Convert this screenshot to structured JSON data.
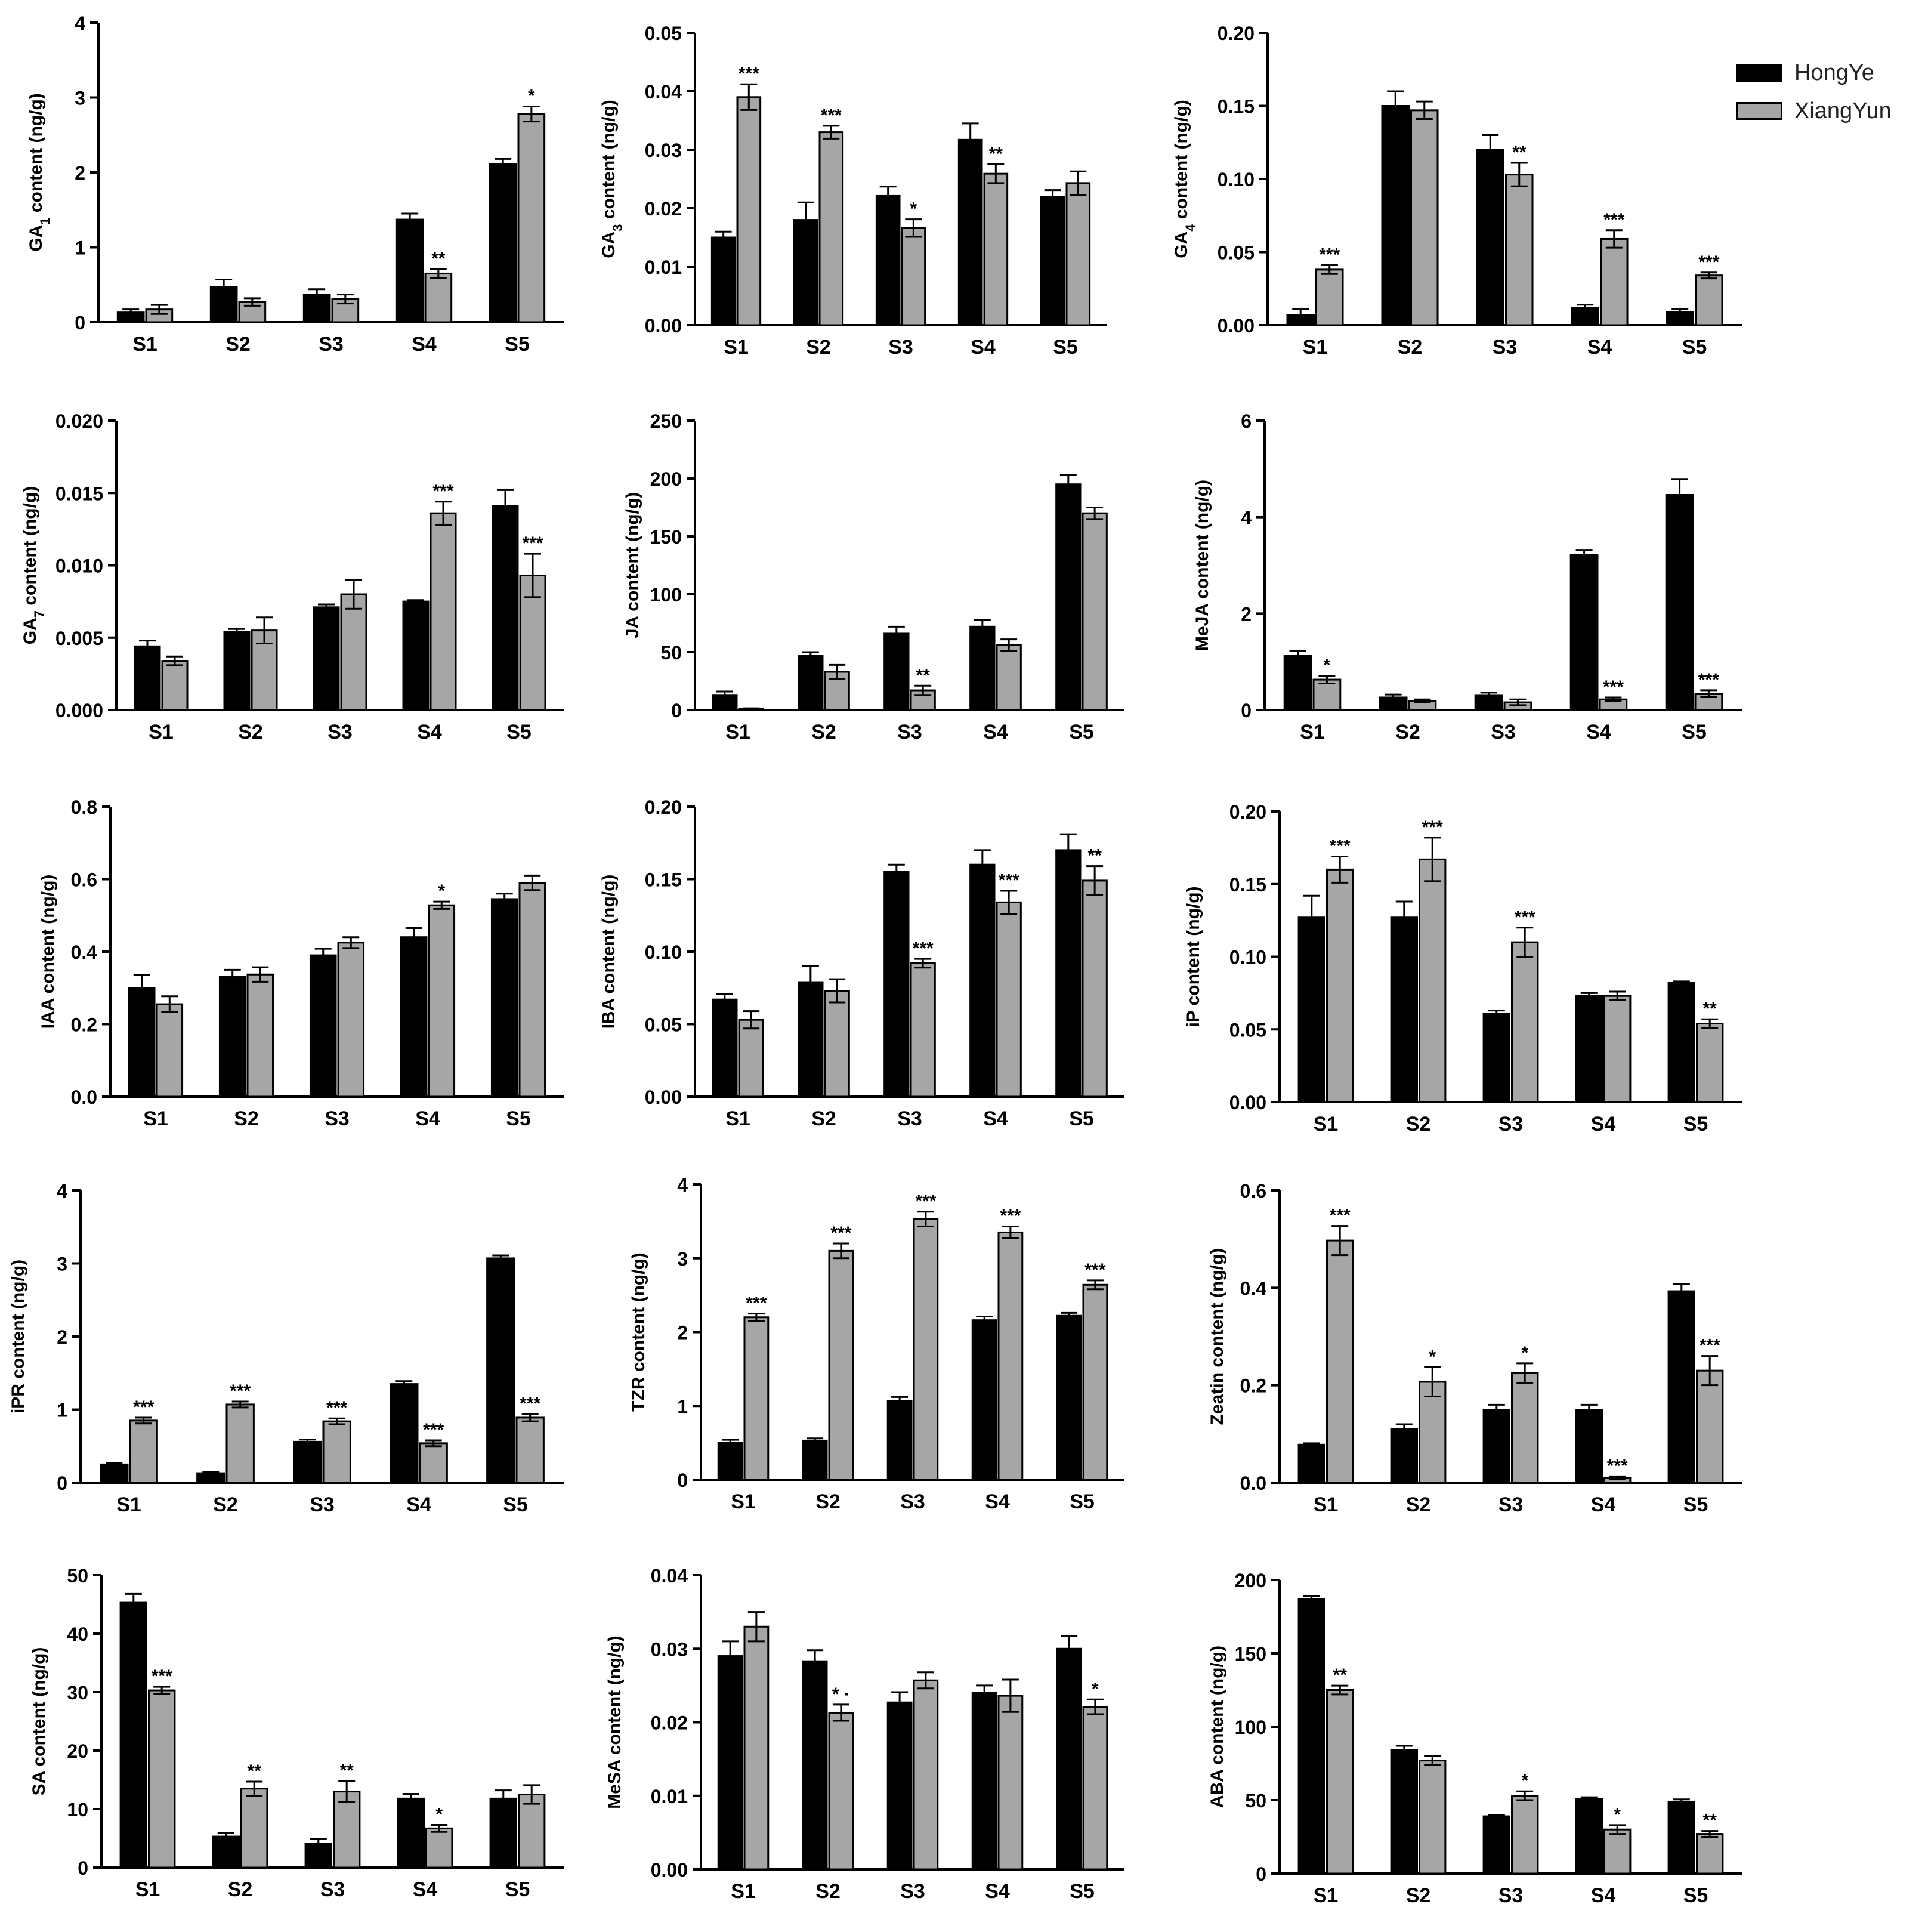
{
  "legend": {
    "items": [
      {
        "label": "HongYe",
        "color": "#000000"
      },
      {
        "label": "XiangYun",
        "color": "#a6a6a6"
      }
    ]
  },
  "chart_data": [
    {
      "type": "bar",
      "ylabel": "GA1 content (ng/g)",
      "ylabel_main": "GA",
      "ylabel_sub": "1",
      "ylabel_rest": " content (ng/g)",
      "categories": [
        "S1",
        "S2",
        "S3",
        "S4",
        "S5"
      ],
      "ylim": [
        0,
        4
      ],
      "yticks": [
        "0",
        "1",
        "2",
        "3",
        "4"
      ],
      "series": [
        {
          "name": "HongYe",
          "values": [
            0.13,
            0.47,
            0.37,
            1.37,
            2.11
          ],
          "errors": [
            0.04,
            0.1,
            0.07,
            0.08,
            0.07
          ]
        },
        {
          "name": "XiangYun",
          "values": [
            0.17,
            0.27,
            0.31,
            0.65,
            2.78
          ],
          "errors": [
            0.06,
            0.05,
            0.06,
            0.06,
            0.1
          ]
        }
      ],
      "annotations": [
        "",
        "",
        "",
        "**",
        "*"
      ]
    },
    {
      "type": "bar",
      "ylabel": "GA3 content (ng/g)",
      "ylabel_main": "GA",
      "ylabel_sub": "3",
      "ylabel_rest": " content (ng/g)",
      "categories": [
        "S1",
        "S2",
        "S3",
        "S4",
        "S5"
      ],
      "ylim": [
        0,
        0.05
      ],
      "yticks": [
        "0.00",
        "0.01",
        "0.02",
        "0.03",
        "0.04",
        "0.05"
      ],
      "series": [
        {
          "name": "HongYe",
          "values": [
            0.015,
            0.018,
            0.0222,
            0.0317,
            0.0219
          ],
          "errors": [
            0.001,
            0.003,
            0.0015,
            0.0028,
            0.0012
          ]
        },
        {
          "name": "XiangYun",
          "values": [
            0.039,
            0.033,
            0.0166,
            0.0259,
            0.0243
          ],
          "errors": [
            0.0022,
            0.0011,
            0.0015,
            0.0016,
            0.002
          ]
        }
      ],
      "annotations": [
        "***",
        "***",
        "*",
        "**",
        ""
      ]
    },
    {
      "type": "bar",
      "ylabel": "GA4 content (ng/g)",
      "ylabel_main": "GA",
      "ylabel_sub": "4",
      "ylabel_rest": " content (ng/g)",
      "categories": [
        "S1",
        "S2",
        "S3",
        "S4",
        "S5"
      ],
      "ylim": [
        0,
        0.2
      ],
      "yticks": [
        "0.00",
        "0.05",
        "0.10",
        "0.15",
        "0.20"
      ],
      "series": [
        {
          "name": "HongYe",
          "values": [
            0.007,
            0.15,
            0.12,
            0.012,
            0.009
          ],
          "errors": [
            0.004,
            0.01,
            0.01,
            0.002,
            0.002
          ]
        },
        {
          "name": "XiangYun",
          "values": [
            0.038,
            0.147,
            0.103,
            0.059,
            0.034
          ],
          "errors": [
            0.003,
            0.006,
            0.008,
            0.006,
            0.002
          ]
        }
      ],
      "annotations": [
        "***",
        "",
        "**",
        "***",
        "***"
      ]
    },
    {
      "type": "bar",
      "ylabel": "GA7 content (ng/g)",
      "ylabel_main": "GA",
      "ylabel_sub": "7",
      "ylabel_rest": " content (ng/g)",
      "categories": [
        "S1",
        "S2",
        "S3",
        "S4",
        "S5"
      ],
      "ylim": [
        0,
        0.02
      ],
      "yticks": [
        "0.000",
        "0.005",
        "0.010",
        "0.015",
        "0.020"
      ],
      "series": [
        {
          "name": "HongYe",
          "values": [
            0.0044,
            0.0054,
            0.0071,
            0.0075,
            0.0141
          ],
          "errors": [
            0.0004,
            0.0002,
            0.0002,
            0.0001,
            0.0011
          ]
        },
        {
          "name": "XiangYun",
          "values": [
            0.0034,
            0.0055,
            0.008,
            0.0136,
            0.0093
          ],
          "errors": [
            0.0003,
            0.0009,
            0.001,
            0.0008,
            0.0015
          ]
        }
      ],
      "annotations": [
        "",
        "",
        "",
        "***",
        "***"
      ]
    },
    {
      "type": "bar",
      "ylabel": "JA content (ng/g)",
      "ylabel_main": "JA content (ng/g)",
      "ylabel_sub": "",
      "ylabel_rest": "",
      "categories": [
        "S1",
        "S2",
        "S3",
        "S4",
        "S5"
      ],
      "ylim": [
        0,
        250
      ],
      "yticks": [
        "0",
        "50",
        "100",
        "150",
        "200",
        "250"
      ],
      "series": [
        {
          "name": "HongYe",
          "values": [
            13,
            47,
            66,
            72,
            195
          ],
          "errors": [
            3,
            3,
            6,
            6,
            8
          ]
        },
        {
          "name": "XiangYun",
          "values": [
            1,
            33,
            17,
            56,
            170
          ],
          "errors": [
            0.5,
            6,
            4,
            5,
            5
          ]
        }
      ],
      "annotations": [
        "",
        "",
        "**",
        "",
        ""
      ]
    },
    {
      "type": "bar",
      "ylabel": "MeJA content (ng/g)",
      "ylabel_main": "MeJA content (ng/g)",
      "ylabel_sub": "",
      "ylabel_rest": "",
      "categories": [
        "S1",
        "S2",
        "S3",
        "S4",
        "S5"
      ],
      "ylim": [
        0,
        6
      ],
      "yticks": [
        "0",
        "2",
        "4",
        "6"
      ],
      "series": [
        {
          "name": "HongYe",
          "values": [
            1.12,
            0.26,
            0.31,
            3.22,
            4.46
          ],
          "errors": [
            0.1,
            0.06,
            0.05,
            0.1,
            0.33
          ]
        },
        {
          "name": "XiangYun",
          "values": [
            0.63,
            0.19,
            0.16,
            0.22,
            0.34
          ],
          "errors": [
            0.08,
            0.03,
            0.06,
            0.04,
            0.07
          ]
        }
      ],
      "annotations": [
        "*",
        "",
        "",
        "***",
        "***"
      ]
    },
    {
      "type": "bar",
      "ylabel": "IAA content (ng/g)",
      "ylabel_main": "IAA content (ng/g)",
      "ylabel_sub": "",
      "ylabel_rest": "",
      "categories": [
        "S1",
        "S2",
        "S3",
        "S4",
        "S5"
      ],
      "ylim": [
        0,
        0.8
      ],
      "yticks": [
        "0.0",
        "0.2",
        "0.4",
        "0.6",
        "0.8"
      ],
      "series": [
        {
          "name": "HongYe",
          "values": [
            0.3,
            0.33,
            0.39,
            0.44,
            0.545
          ],
          "errors": [
            0.035,
            0.02,
            0.018,
            0.025,
            0.015
          ]
        },
        {
          "name": "XiangYun",
          "values": [
            0.255,
            0.337,
            0.425,
            0.528,
            0.59
          ],
          "errors": [
            0.022,
            0.02,
            0.015,
            0.01,
            0.02
          ]
        }
      ],
      "annotations": [
        "",
        "",
        "",
        "*",
        ""
      ]
    },
    {
      "type": "bar",
      "ylabel": "IBA content (ng/g)",
      "ylabel_main": "IBA content (ng/g)",
      "ylabel_sub": "",
      "ylabel_rest": "",
      "categories": [
        "S1",
        "S2",
        "S3",
        "S4",
        "S5"
      ],
      "ylim": [
        0,
        0.2
      ],
      "yticks": [
        "0.00",
        "0.05",
        "0.10",
        "0.15",
        "0.20"
      ],
      "series": [
        {
          "name": "HongYe",
          "values": [
            0.067,
            0.079,
            0.155,
            0.16,
            0.17
          ],
          "errors": [
            0.004,
            0.011,
            0.005,
            0.01,
            0.011
          ]
        },
        {
          "name": "XiangYun",
          "values": [
            0.053,
            0.073,
            0.092,
            0.134,
            0.149
          ],
          "errors": [
            0.006,
            0.008,
            0.003,
            0.008,
            0.01
          ]
        }
      ],
      "annotations": [
        "",
        "",
        "***",
        "***",
        "**"
      ]
    },
    {
      "type": "bar",
      "ylabel": "iP content (ng/g)",
      "ylabel_main": "iP content (ng/g)",
      "ylabel_sub": "",
      "ylabel_rest": "",
      "categories": [
        "S1",
        "S2",
        "S3",
        "S4",
        "S5"
      ],
      "ylim": [
        0,
        0.2
      ],
      "yticks": [
        "0.00",
        "0.05",
        "0.10",
        "0.15",
        "0.20"
      ],
      "series": [
        {
          "name": "HongYe",
          "values": [
            0.127,
            0.127,
            0.061,
            0.073,
            0.082
          ],
          "errors": [
            0.015,
            0.011,
            0.002,
            0.002,
            0.001
          ]
        },
        {
          "name": "XiangYun",
          "values": [
            0.16,
            0.167,
            0.11,
            0.073,
            0.054
          ],
          "errors": [
            0.009,
            0.015,
            0.01,
            0.003,
            0.003
          ]
        }
      ],
      "annotations": [
        "***",
        "***",
        "***",
        "",
        "**"
      ]
    },
    {
      "type": "bar",
      "ylabel": "iPR content (ng/g)",
      "ylabel_main": "iPR content (ng/g)",
      "ylabel_sub": "",
      "ylabel_rest": "",
      "categories": [
        "S1",
        "S2",
        "S3",
        "S4",
        "S5"
      ],
      "ylim": [
        0,
        4
      ],
      "yticks": [
        "0",
        "1",
        "2",
        "3",
        "4"
      ],
      "series": [
        {
          "name": "HongYe",
          "values": [
            0.25,
            0.13,
            0.56,
            1.35,
            3.07
          ],
          "errors": [
            0.02,
            0.02,
            0.03,
            0.04,
            0.04
          ]
        },
        {
          "name": "XiangYun",
          "values": [
            0.85,
            1.07,
            0.84,
            0.54,
            0.89
          ],
          "errors": [
            0.04,
            0.04,
            0.04,
            0.04,
            0.05
          ]
        }
      ],
      "annotations": [
        "***",
        "***",
        "***",
        "***",
        "***"
      ]
    },
    {
      "type": "bar",
      "ylabel": "TZR content (ng/g)",
      "ylabel_main": "TZR content (ng/g)",
      "ylabel_sub": "",
      "ylabel_rest": "",
      "categories": [
        "S1",
        "S2",
        "S3",
        "S4",
        "S5"
      ],
      "ylim": [
        0,
        4
      ],
      "yticks": [
        "0",
        "1",
        "2",
        "3",
        "4"
      ],
      "series": [
        {
          "name": "HongYe",
          "values": [
            0.5,
            0.53,
            1.07,
            2.16,
            2.22
          ],
          "errors": [
            0.04,
            0.03,
            0.05,
            0.05,
            0.04
          ]
        },
        {
          "name": "XiangYun",
          "values": [
            2.2,
            3.1,
            3.53,
            3.35,
            2.64
          ],
          "errors": [
            0.05,
            0.1,
            0.1,
            0.08,
            0.06
          ]
        }
      ],
      "annotations": [
        "***",
        "***",
        "***",
        "***",
        "***"
      ]
    },
    {
      "type": "bar",
      "ylabel": "Zeatin content (ng/g)",
      "ylabel_main": "Zeatin content (ng/g)",
      "ylabel_sub": "",
      "ylabel_rest": "",
      "categories": [
        "S1",
        "S2",
        "S3",
        "S4",
        "S5"
      ],
      "ylim": [
        0,
        0.6
      ],
      "yticks": [
        "0.0",
        "0.2",
        "0.4",
        "0.6"
      ],
      "series": [
        {
          "name": "HongYe",
          "values": [
            0.078,
            0.11,
            0.15,
            0.15,
            0.393
          ],
          "errors": [
            0.003,
            0.01,
            0.01,
            0.01,
            0.015
          ]
        },
        {
          "name": "XiangYun",
          "values": [
            0.497,
            0.207,
            0.225,
            0.01,
            0.23
          ],
          "errors": [
            0.03,
            0.03,
            0.02,
            0.003,
            0.03
          ]
        }
      ],
      "annotations": [
        "***",
        "*",
        "*",
        "***",
        "***"
      ]
    },
    {
      "type": "bar",
      "ylabel": "SA content (ng/g)",
      "ylabel_main": "SA content (ng/g)",
      "ylabel_sub": "",
      "ylabel_rest": "",
      "categories": [
        "S1",
        "S2",
        "S3",
        "S4",
        "S5"
      ],
      "ylim": [
        0,
        50
      ],
      "yticks": [
        "0",
        "10",
        "20",
        "30",
        "40",
        "50"
      ],
      "series": [
        {
          "name": "HongYe",
          "values": [
            45.3,
            5.3,
            4.1,
            11.8,
            11.8
          ],
          "errors": [
            1.5,
            0.6,
            0.8,
            0.8,
            1.4
          ]
        },
        {
          "name": "XiangYun",
          "values": [
            30.3,
            13.5,
            13.0,
            6.7,
            12.5
          ],
          "errors": [
            0.6,
            1.2,
            1.8,
            0.6,
            1.6
          ]
        }
      ],
      "annotations": [
        "***",
        "**",
        "**",
        "*",
        ""
      ]
    },
    {
      "type": "bar",
      "ylabel": "MeSA content (ng/g)",
      "ylabel_main": "MeSA content (ng/g)",
      "ylabel_sub": "",
      "ylabel_rest": "",
      "categories": [
        "S1",
        "S2",
        "S3",
        "S4",
        "S5"
      ],
      "ylim": [
        0,
        0.04
      ],
      "yticks": [
        "0.00",
        "0.01",
        "0.02",
        "0.03",
        "0.04"
      ],
      "series": [
        {
          "name": "HongYe",
          "values": [
            0.029,
            0.0283,
            0.0227,
            0.024,
            0.03
          ],
          "errors": [
            0.002,
            0.0015,
            0.0014,
            0.001,
            0.0017
          ]
        },
        {
          "name": "XiangYun",
          "values": [
            0.033,
            0.0213,
            0.0257,
            0.0236,
            0.0221
          ],
          "errors": [
            0.002,
            0.0011,
            0.0011,
            0.0022,
            0.001
          ]
        }
      ],
      "annotations": [
        "",
        "* ·",
        "",
        "",
        "*"
      ]
    },
    {
      "type": "bar",
      "ylabel": "ABA content (ng/g)",
      "ylabel_main": "ABA content (ng/g)",
      "ylabel_sub": "",
      "ylabel_rest": "",
      "categories": [
        "S1",
        "S2",
        "S3",
        "S4",
        "S5"
      ],
      "ylim": [
        0,
        200
      ],
      "yticks": [
        "0",
        "50",
        "100",
        "150",
        "200"
      ],
      "series": [
        {
          "name": "HongYe",
          "values": [
            187,
            84,
            39,
            51,
            49
          ],
          "errors": [
            2,
            3,
            1,
            1,
            1.5
          ]
        },
        {
          "name": "XiangYun",
          "values": [
            125,
            77,
            53,
            30,
            27
          ],
          "errors": [
            3,
            3,
            3,
            3,
            2
          ]
        }
      ],
      "annotations": [
        "**",
        "",
        "*",
        "*",
        "**"
      ]
    }
  ]
}
